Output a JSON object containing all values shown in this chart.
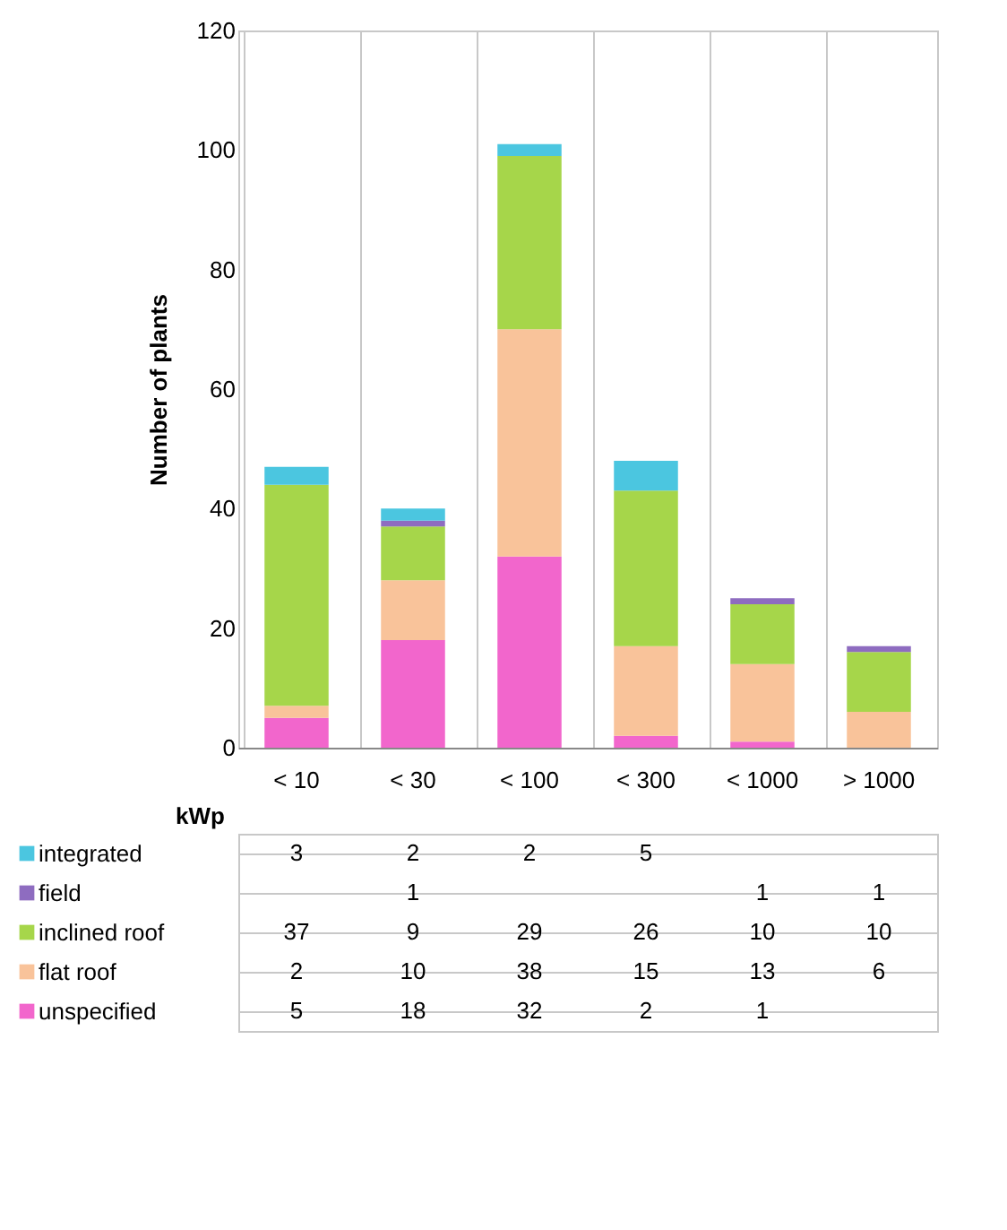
{
  "chart_data": {
    "type": "bar",
    "stacked": true,
    "xlabel": "kWp",
    "ylabel": "Number of plants",
    "categories": [
      "< 10",
      "< 30",
      "< 100",
      "< 300",
      "< 1000",
      "> 1000"
    ],
    "series": [
      {
        "name": "unspecified",
        "color": "#f266cc",
        "values": [
          5,
          18,
          32,
          2,
          1,
          null
        ]
      },
      {
        "name": "flat roof",
        "color": "#f9c39a",
        "values": [
          2,
          10,
          38,
          15,
          13,
          6
        ]
      },
      {
        "name": "inclined roof",
        "color": "#a6d64a",
        "values": [
          37,
          9,
          29,
          26,
          10,
          10
        ]
      },
      {
        "name": "field",
        "color": "#8e6cc0",
        "values": [
          null,
          1,
          null,
          null,
          1,
          1
        ]
      },
      {
        "name": "integrated",
        "color": "#4bc6e0",
        "values": [
          3,
          2,
          2,
          5,
          null,
          null
        ]
      }
    ],
    "ylim": [
      0,
      120
    ],
    "yticks": [
      0,
      20,
      40,
      60,
      80,
      100,
      120
    ],
    "grid": "x",
    "data_labels": true,
    "legend": "bottom"
  }
}
